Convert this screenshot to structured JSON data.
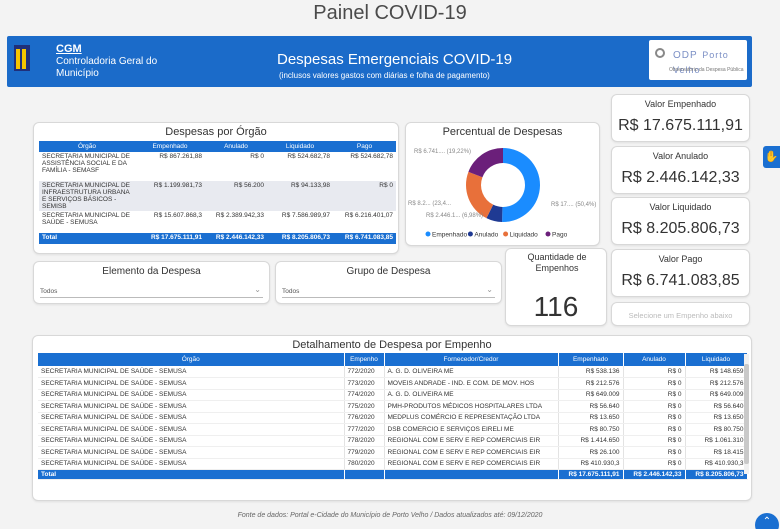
{
  "page_title": "Painel COVID-19",
  "banner": {
    "org_abbr": "CGM",
    "org_name": "Controladoria Geral do Município",
    "title": "Despesas Emergenciais COVID-19",
    "subtitle": "(inclusos valores gastos com diárias e folha de pagamento)",
    "partner_logo": "ODP",
    "partner_city": "Porto Velho",
    "partner_sub": "Observatório da Despesa Pública"
  },
  "despesas_por_orgao": {
    "title": "Despesas por Órgão",
    "headers": [
      "Órgão",
      "Empenhado",
      "Anulado",
      "Liquidado",
      "Pago"
    ],
    "rows": [
      [
        "SECRETARIA MUNICIPAL DE ASSISTÊNCIA SOCIAL E DA FAMÍLIA - SEMASF",
        "R$ 867.261,88",
        "R$ 0",
        "R$ 524.682,78",
        "R$ 524.682,78"
      ],
      [
        "SECRETARIA MUNICIPAL DE INFRAESTRUTURA URBANA E SERVIÇOS BÁSICOS - SEMISB",
        "R$ 1.199.981,73",
        "R$ 56.200",
        "R$ 94.133,98",
        "R$ 0"
      ],
      [
        "SECRETARIA MUNICIPAL DE SAÚDE - SEMUSA",
        "R$ 15.607.868,3",
        "R$ 2.389.942,33",
        "R$ 7.586.989,97",
        "R$ 6.216.401,07"
      ]
    ],
    "total": [
      "Total",
      "R$ 17.675.111,91",
      "R$ 2.446.142,33",
      "R$ 8.205.806,73",
      "R$ 6.741.083,85"
    ]
  },
  "chart_data": {
    "type": "pie",
    "title": "Percentual de Despesas",
    "categories": [
      "Empenhado",
      "Anulado",
      "Liquidado",
      "Pago"
    ],
    "values": [
      17675111.91,
      2446142.33,
      8205806.73,
      6741083.85
    ],
    "percentages": [
      50.4,
      6.98,
      23.4,
      19.22
    ],
    "colors": [
      "#1a8cff",
      "#1f3a93",
      "#e8703a",
      "#6b1f7a"
    ],
    "data_labels": [
      "R$ 17.... (50,4%)",
      "R$ 2.446.1... (6,98%)",
      "R$ 8.2... (23,4...",
      "R$ 6.741.... (19,22%)"
    ],
    "legend_position": "bottom"
  },
  "kpis": {
    "empenhado": {
      "label": "Valor Empenhado",
      "value": "R$ 17.675.111,91"
    },
    "anulado": {
      "label": "Valor Anulado",
      "value": "R$ 2.446.142,33"
    },
    "liquidado": {
      "label": "Valor Liquidado",
      "value": "R$ 8.205.806,73"
    },
    "pago": {
      "label": "Valor Pago",
      "value": "R$ 6.741.083,85"
    },
    "quantidade": {
      "label": "Quantidade de Empenhos",
      "value": "116"
    },
    "selecione": "Selecione um Empenho abaixo"
  },
  "slicers": {
    "elemento": {
      "label": "Elemento da Despesa",
      "value": "Todos"
    },
    "grupo": {
      "label": "Grupo de Despesa",
      "value": "Todos"
    }
  },
  "detalhamento": {
    "title": "Detalhamento de Despesa por Empenho",
    "headers": [
      "Órgão",
      "Empenho",
      "Fornecedor/Credor",
      "Empenhado",
      "Anulado",
      "Liquidado"
    ],
    "rows": [
      [
        "SECRETARIA MUNICIPAL DE SAÚDE - SEMUSA",
        "772/2020",
        "A. G. D. OLIVEIRA ME",
        "R$ 538.136",
        "R$ 0",
        "R$ 148.659"
      ],
      [
        "SECRETARIA MUNICIPAL DE SAÚDE - SEMUSA",
        "773/2020",
        "MOVEIS ANDRADE - IND. E COM. DE MOV. HOS",
        "R$ 212.576",
        "R$ 0",
        "R$ 212.576"
      ],
      [
        "SECRETARIA MUNICIPAL DE SAÚDE - SEMUSA",
        "774/2020",
        "A. G. D. OLIVEIRA ME",
        "R$ 649.009",
        "R$ 0",
        "R$ 649.009"
      ],
      [
        "SECRETARIA MUNICIPAL DE SAÚDE - SEMUSA",
        "775/2020",
        "PMH-PRODUTOS MÉDICOS HOSPITALARES LTDA",
        "R$ 56.640",
        "R$ 0",
        "R$ 56.640"
      ],
      [
        "SECRETARIA MUNICIPAL DE SAÚDE - SEMUSA",
        "776/2020",
        "MEDPLUS COMÉRCIO E REPRESENTAÇÃO LTDA",
        "R$ 13.650",
        "R$ 0",
        "R$ 13.650"
      ],
      [
        "SECRETARIA MUNICIPAL DE SAÚDE - SEMUSA",
        "777/2020",
        "DSB COMERCIO E SERVIÇOS EIRELI ME",
        "R$ 80.750",
        "R$ 0",
        "R$ 80.750"
      ],
      [
        "SECRETARIA MUNICIPAL DE SAÚDE - SEMUSA",
        "778/2020",
        "REGIONAL COM E SERV E REP COMERCIAIS EIR",
        "R$ 1.414.650",
        "R$ 0",
        "R$ 1.061.310"
      ],
      [
        "SECRETARIA MUNICIPAL DE SAÚDE - SEMUSA",
        "779/2020",
        "REGIONAL COM E SERV E REP COMERCIAIS EIR",
        "R$ 26.100",
        "R$ 0",
        "R$ 18.415"
      ],
      [
        "SECRETARIA MUNICIPAL DE SAÚDE - SEMUSA",
        "780/2020",
        "REGIONAL COM E SERV E REP COMERCIAIS EIR",
        "R$ 410.930,3",
        "R$ 0",
        "R$ 410.930,3"
      ]
    ],
    "total": [
      "Total",
      "",
      "",
      "R$ 17.675.111,91",
      "R$ 2.446.142,33",
      "R$ 8.205.806,73"
    ]
  },
  "footer": "Fonte de dados: Portal e-Cidade do Município de Porto Velho /  Dados atualizados até: 09/12/2020"
}
